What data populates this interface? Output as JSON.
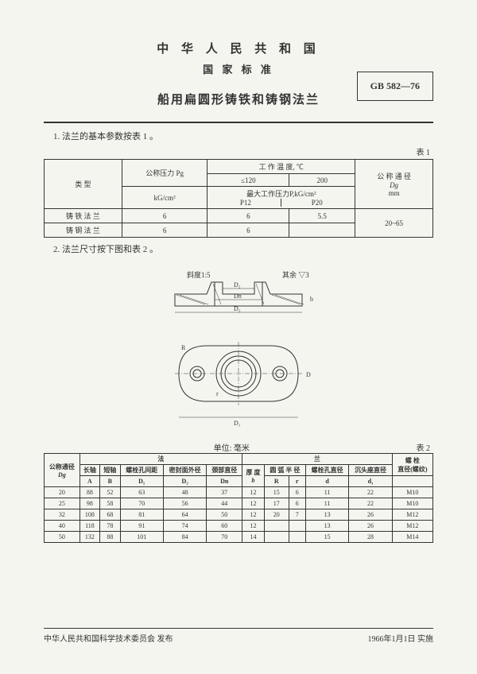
{
  "header": {
    "country": "中 华 人 民 共 和 国",
    "std": "国 家 标 准",
    "title": "船用扁圆形铸铁和铸钢法兰",
    "code": "GB 582—76"
  },
  "section1": "1. 法兰的基本参数按表 1 。",
  "section2": "2. 法兰尺寸按下图和表 2 。",
  "table1_label": "表 1",
  "table2_label": "表 2",
  "table2_unit": "单位: 毫米",
  "table1": {
    "h_type": "类    型",
    "h_pressure": "公称压力 Pg",
    "h_pressure_unit": "kG/cm²",
    "h_temp": "工 作 温 度, ℃",
    "h_t1": "≤120",
    "h_t2": "200",
    "h_maxp": "最大工作压力P,kG/cm²",
    "h_p12": "P12",
    "h_p20": "P20",
    "h_dn": "公 称 通 径",
    "h_dn_sym": "Dg",
    "h_dn_unit": "mm",
    "rows": [
      {
        "type": "铸 铁 法 兰",
        "pg": "6",
        "p12": "6",
        "p20": "5.5"
      },
      {
        "type": "铸 钢 法 兰",
        "pg": "6",
        "p12": "6",
        "p20": ""
      }
    ],
    "dn_range": "20~65"
  },
  "diagram": {
    "slope": "斜度1:5",
    "rest": "其余 ▽3",
    "labels": {
      "D2": "D₂",
      "Dn": "Dn",
      "D3": "D₃",
      "D1": "D₁",
      "D": "D",
      "b": "b",
      "R": "R",
      "r": "r",
      "d": "d"
    }
  },
  "table2": {
    "head": {
      "dg": "公称通径",
      "dg_sym": "Dg",
      "group_f": "法",
      "group_l": "兰",
      "longax": "长轴",
      "shortax": "短轴",
      "boltsp": "螺栓孔间距",
      "sealod": "密封面外径",
      "neckd": "颈部直径",
      "thick": "厚 度",
      "arcrad": "圆 弧 半 径",
      "bolthole": "螺栓孔直径",
      "counter": "沉头座直径",
      "bolt": "螺 栓",
      "boltd": "直径(螺纹)",
      "A": "A",
      "B": "B",
      "D1": "D₁",
      "D2": "D₂",
      "Dn": "Dn",
      "b": "b",
      "R": "R",
      "r": "r",
      "d": "d",
      "d1": "d₁"
    },
    "rows": [
      [
        "20",
        "88",
        "52",
        "63",
        "48",
        "37",
        "12",
        "15",
        "6",
        "11",
        "22",
        "M10"
      ],
      [
        "25",
        "98",
        "58",
        "70",
        "56",
        "44",
        "12",
        "17",
        "6",
        "11",
        "22",
        "M10"
      ],
      [
        "32",
        "108",
        "68",
        "81",
        "64",
        "50",
        "12",
        "20",
        "7",
        "13",
        "26",
        "M12"
      ],
      [
        "40",
        "118",
        "78",
        "91",
        "74",
        "60",
        "12",
        "",
        "",
        "13",
        "26",
        "M12"
      ],
      [
        "50",
        "132",
        "88",
        "101",
        "84",
        "70",
        "14",
        "",
        "",
        "15",
        "28",
        "M14"
      ]
    ]
  },
  "footer": {
    "left": "中华人民共和国科学技术委员会 发布",
    "right": "1966年1月1日 实施"
  }
}
